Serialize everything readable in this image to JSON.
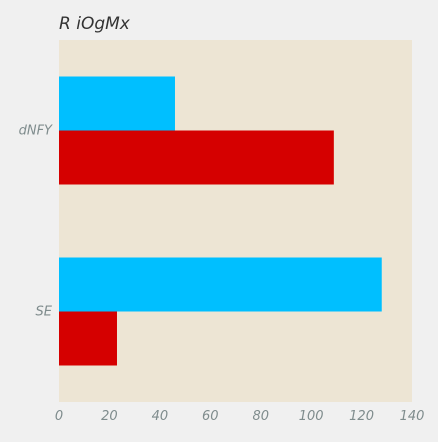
{
  "chart_data": {
    "type": "bar",
    "orientation": "horizontal",
    "title": "R iOgMx",
    "xlabel": "",
    "ylabel": "",
    "categories": [
      "dNFY",
      "SE"
    ],
    "series": [
      {
        "color": "#00bfff",
        "values": [
          46,
          128
        ]
      },
      {
        "color": "#d50000",
        "values": [
          109,
          23
        ]
      }
    ],
    "xlim": [
      0,
      140
    ],
    "xticks": [
      0,
      20,
      40,
      60,
      80,
      100,
      120,
      140
    ],
    "grid": false,
    "legend": "none",
    "colors": {
      "plot_background": "#ede5d4",
      "page_background": "#f0f0f0",
      "title": "#333333",
      "tick_labels": "#7f8c8d"
    }
  }
}
